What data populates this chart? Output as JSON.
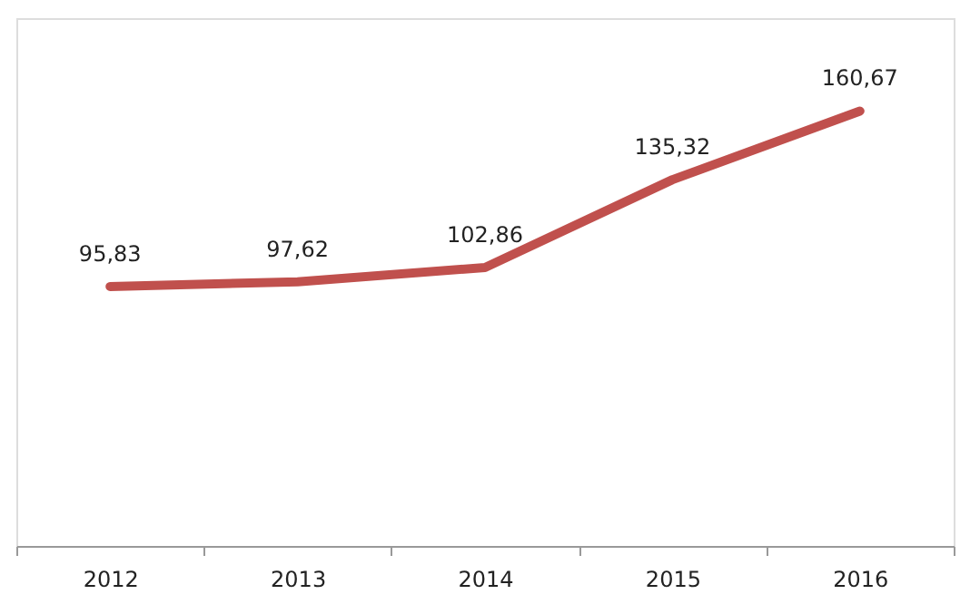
{
  "chart_data": {
    "type": "line",
    "categories": [
      "2012",
      "2013",
      "2014",
      "2015",
      "2016"
    ],
    "series": [
      {
        "color": "#c0504d",
        "values": [
          95.83,
          97.62,
          102.86,
          135.32,
          160.67
        ],
        "value_labels": [
          "95,83",
          "97,62",
          "102,86",
          "135,32",
          "160,67"
        ]
      }
    ],
    "ylim": [
      0,
      195
    ],
    "tick_labels": "x",
    "grid": false,
    "marker": "none",
    "line_style": "solid"
  }
}
